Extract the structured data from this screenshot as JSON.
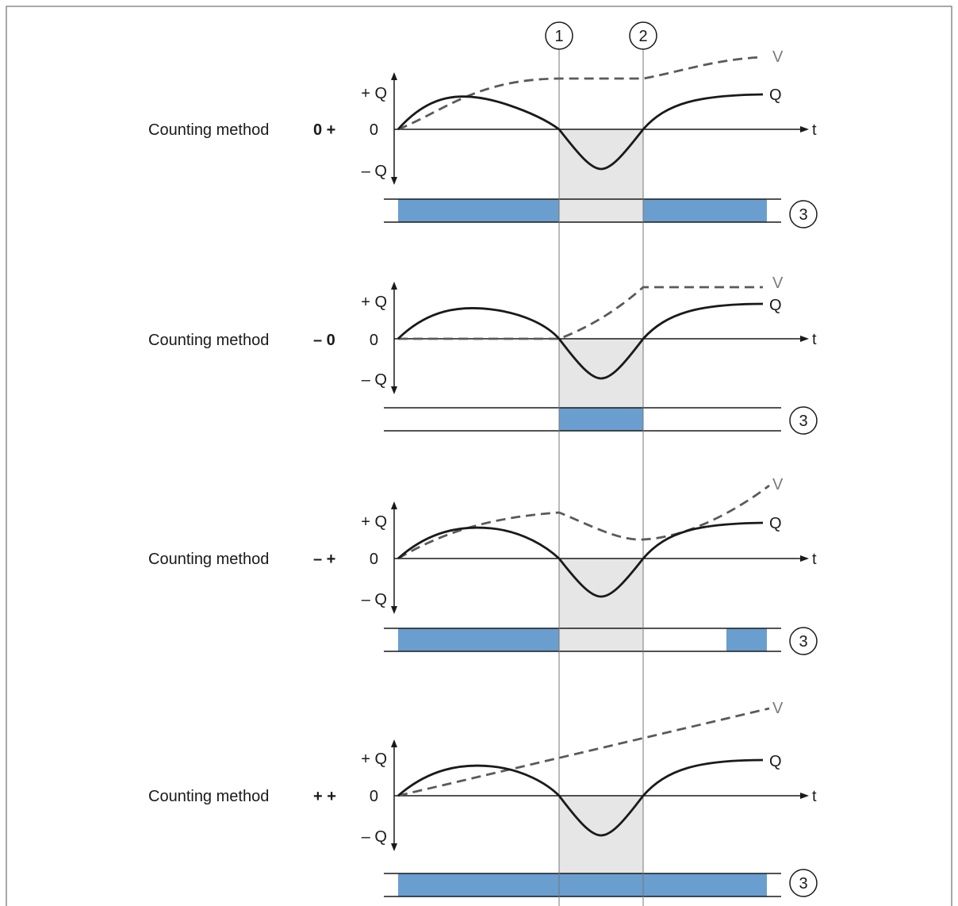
{
  "colors": {
    "frame": "#8c8c8c",
    "shade": "#e6e6e6",
    "bar": "#6a9ecf",
    "curve": "#1a1a1a",
    "dashed": "#5a5a5a",
    "v_label": "#7a7a7a"
  },
  "markers": {
    "one": "1",
    "two": "2",
    "three": "3"
  },
  "axis": {
    "plus_q": "+ Q",
    "zero": "0",
    "minus_q": "– Q",
    "t": "t",
    "v": "V",
    "q": "Q"
  },
  "panels": [
    {
      "label": "Counting method",
      "method": "0 +"
    },
    {
      "label": "Counting method",
      "method": "– 0"
    },
    {
      "label": "Counting method",
      "method": "– +"
    },
    {
      "label": "Counting method",
      "method": "+ +"
    }
  ]
}
